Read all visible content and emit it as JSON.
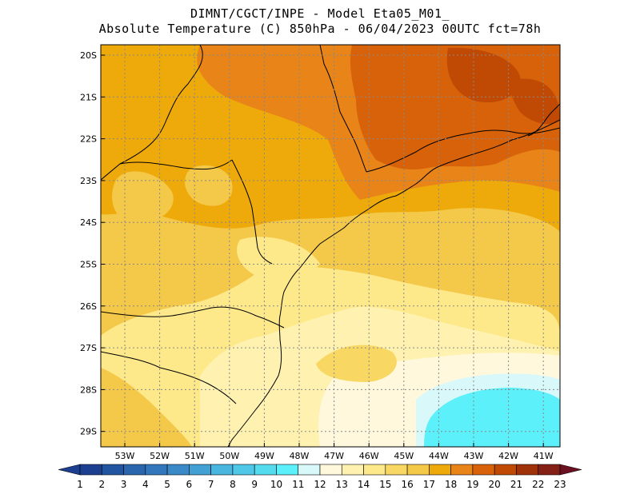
{
  "header": {
    "line1": "DIMNT/CGCT/INPE -  Model Eta05_M01_",
    "line2": "Absolute Temperature (C) 850hPa -  06/04/2023 00UTC fct=78h"
  },
  "axes": {
    "lat_labels": [
      "20S",
      "21S",
      "22S",
      "23S",
      "24S",
      "25S",
      "26S",
      "27S",
      "28S",
      "29S"
    ],
    "lon_labels": [
      "53W",
      "52W",
      "51W",
      "50W",
      "49W",
      "48W",
      "47W",
      "46W",
      "45W",
      "44W",
      "43W",
      "42W",
      "41W"
    ],
    "lat_range": [
      -20,
      -29.4
    ],
    "lon_range": [
      -53.7,
      -40.6
    ],
    "grid": "dotted"
  },
  "colorbar": {
    "labels": [
      "1",
      "2",
      "3",
      "4",
      "5",
      "6",
      "7",
      "8",
      "9",
      "10",
      "11",
      "12",
      "13",
      "14",
      "15",
      "16",
      "17",
      "18",
      "19",
      "20",
      "21",
      "22",
      "23"
    ],
    "colors": [
      "#1c3f8f",
      "#2255a0",
      "#2a66ae",
      "#3277bc",
      "#3a8ac8",
      "#42a0d4",
      "#48b6de",
      "#4ec8e6",
      "#54dcee",
      "#5cf0fa",
      "#d8f8fa",
      "#fff8dc",
      "#fff2b0",
      "#fde88a",
      "#f8d862",
      "#f4c848",
      "#eeaa0a",
      "#e88418",
      "#d8620a",
      "#c04a04",
      "#a0320a",
      "#842016",
      "#6a1020"
    ]
  },
  "fields": {
    "base_color": "#f4c848"
  }
}
